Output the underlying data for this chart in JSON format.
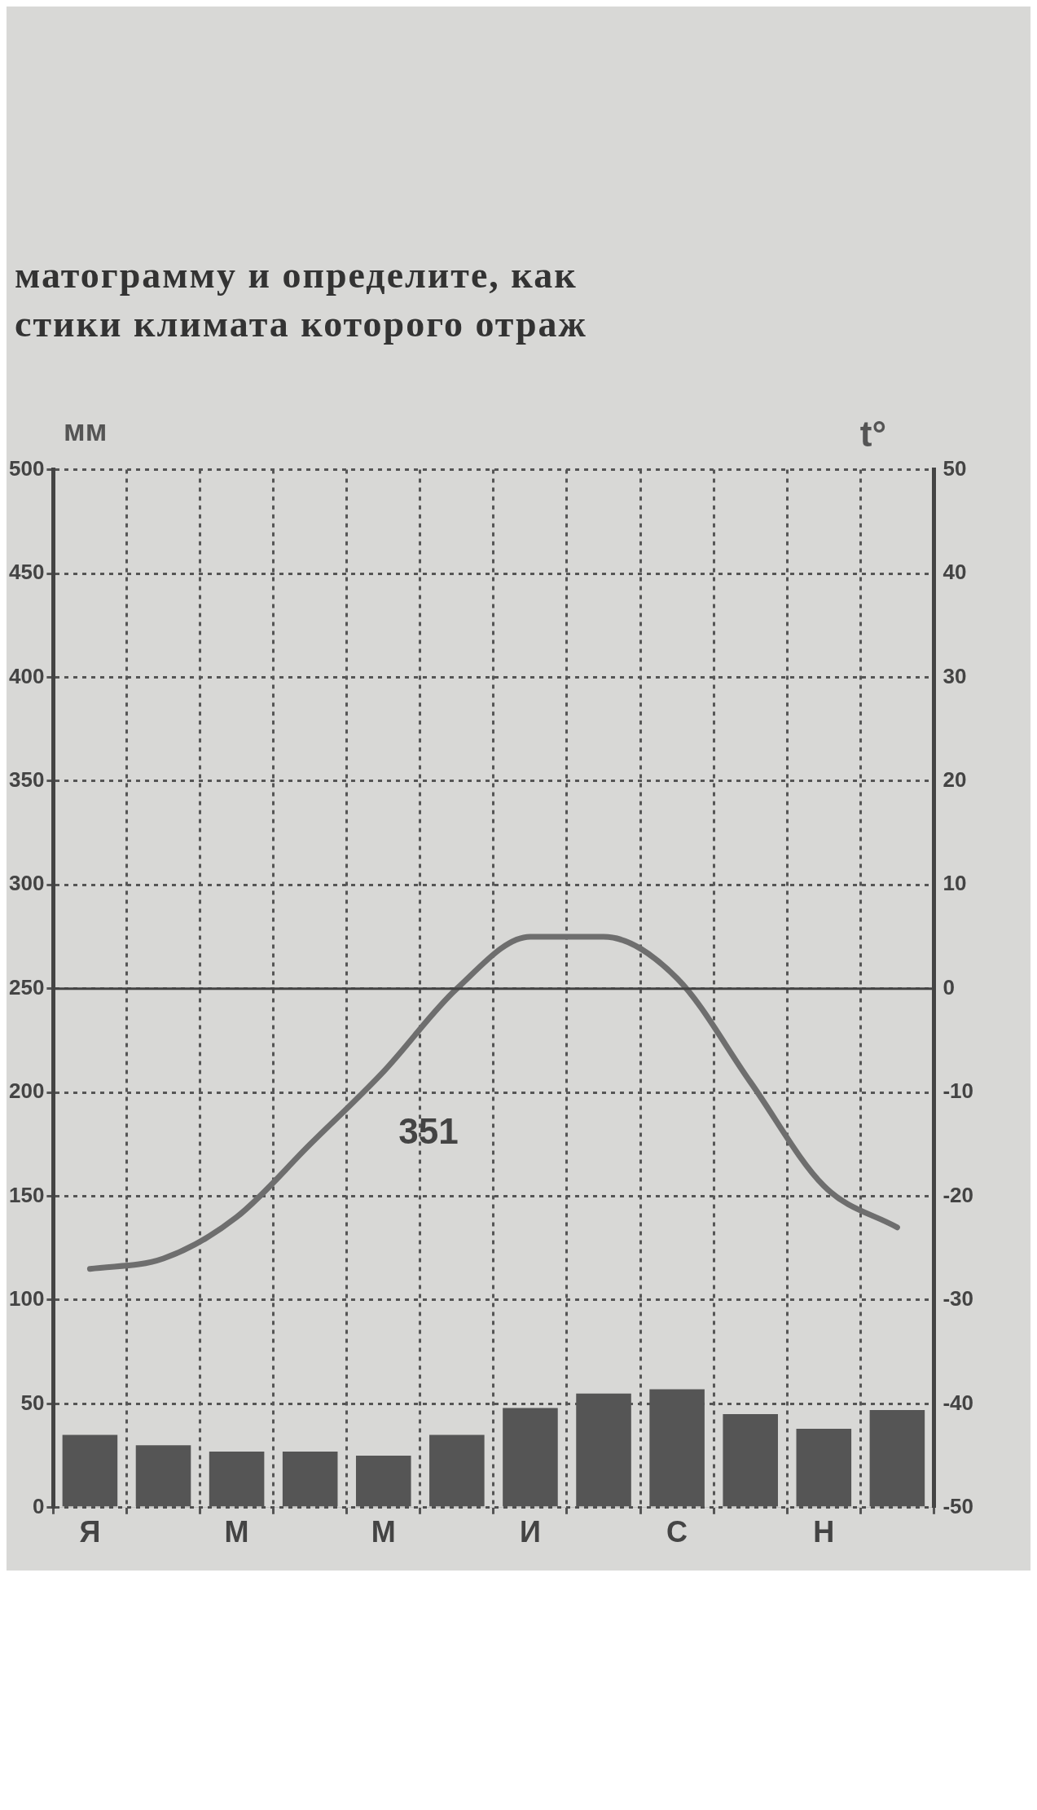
{
  "chart_data": {
    "type": "bar",
    "title": "матограмму и определите, как",
    "subtitle": "стики климата которого отраж",
    "categories": [
      "Я",
      null,
      "М",
      null,
      "М",
      null,
      "И",
      null,
      "С",
      null,
      "Н",
      null
    ],
    "ylabel": "мм",
    "y2label": "t°",
    "series": [
      {
        "color": "#555555",
        "values": [
          35,
          30,
          27,
          27,
          25,
          35,
          48,
          55,
          57,
          45,
          38,
          47
        ]
      },
      {
        "type": "line",
        "axis": "y2",
        "color": "#6e6e6e",
        "values": [
          -27,
          -26,
          -22,
          -15,
          -8,
          0,
          5,
          5,
          1,
          -9,
          -19,
          -23
        ]
      }
    ],
    "ylim": [
      0,
      500
    ],
    "yticks": [
      0,
      50,
      100,
      150,
      200,
      250,
      300,
      350,
      400,
      450,
      500
    ],
    "y2lim": [
      -50,
      50
    ],
    "y2ticks": [
      -50,
      -40,
      -30,
      -20,
      -10,
      0,
      10,
      20,
      30,
      40,
      50
    ],
    "ref_lines": [
      {
        "axis": "y2",
        "value": 0,
        "color": "#444444",
        "line_style": "solid"
      }
    ],
    "annotations": [
      "351"
    ],
    "grid": true,
    "legend": false,
    "marker": "none",
    "line_style": "solid"
  }
}
